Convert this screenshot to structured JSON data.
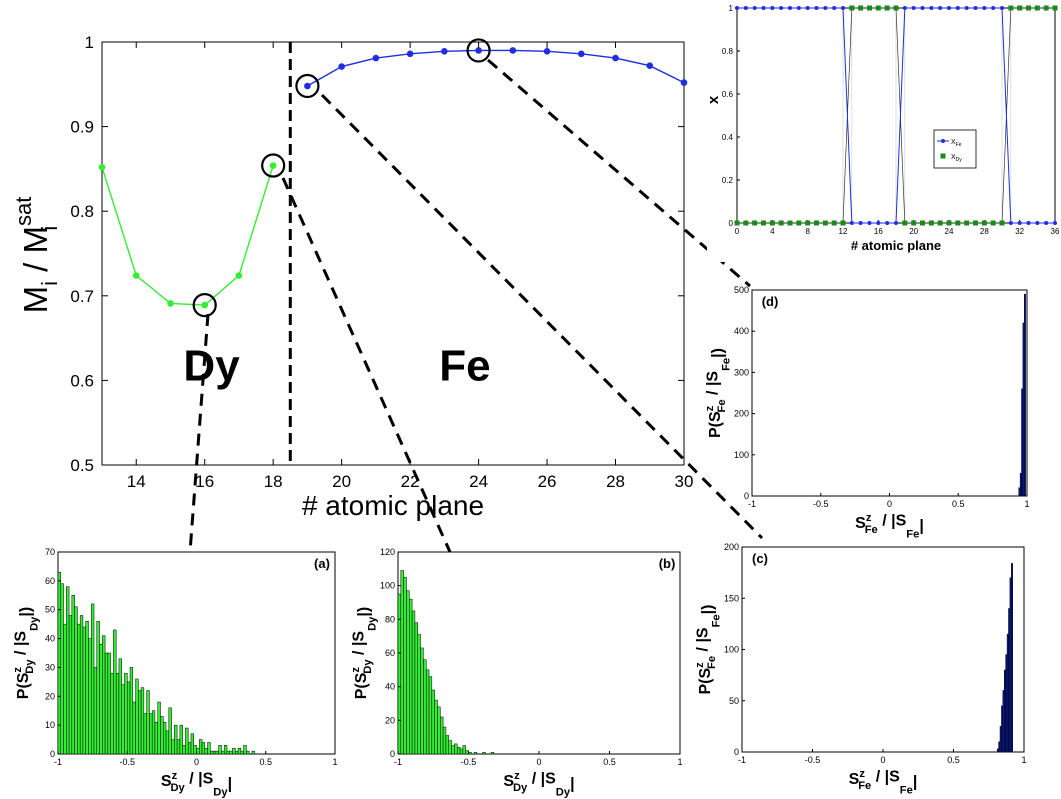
{
  "chart_data": [
    {
      "id": "main",
      "type": "line",
      "xlabel": "# atomic plane",
      "ylabel_main": "M",
      "ylabel_sub": "i",
      "ylabel_sep": " / M",
      "ylabel_sub2": "i",
      "ylabel_sup2": "sat",
      "xlim": [
        13,
        30
      ],
      "ylim": [
        0.5,
        1.0
      ],
      "xticks": [
        14,
        16,
        18,
        20,
        22,
        24,
        26,
        28,
        30
      ],
      "yticks": [
        0.5,
        0.6,
        0.7,
        0.8,
        0.9,
        1.0
      ],
      "xtick_labels": [
        "14",
        "16",
        "18",
        "20",
        "22",
        "24",
        "26",
        "28",
        "30"
      ],
      "ytick_labels": [
        "0.5",
        "0.6",
        "0.7",
        "0.8",
        "0.9",
        "1"
      ],
      "divider_x": 18.5,
      "series": [
        {
          "name": "Dy",
          "color": "#33ee33",
          "x": [
            13,
            14,
            15,
            16,
            17,
            18
          ],
          "y": [
            0.852,
            0.724,
            0.691,
            0.689,
            0.724,
            0.854
          ]
        },
        {
          "name": "Fe",
          "color": "#1f2ee0",
          "x": [
            19,
            20,
            21,
            22,
            23,
            24,
            25,
            26,
            27,
            28,
            29,
            30
          ],
          "y": [
            0.948,
            0.971,
            0.981,
            0.986,
            0.989,
            0.99,
            0.99,
            0.989,
            0.986,
            0.981,
            0.972,
            0.952
          ]
        }
      ],
      "region_labels": [
        {
          "text": "Dy",
          "color": "#33ee33"
        },
        {
          "text": "Fe",
          "color": "#1f2ee0"
        }
      ],
      "highlighted_points": [
        [
          16,
          0.689
        ],
        [
          18,
          0.854
        ],
        [
          19,
          0.948
        ],
        [
          24,
          0.99
        ]
      ]
    },
    {
      "id": "inset",
      "type": "line",
      "xlabel": "# atomic plane",
      "ylabel": "x",
      "xlim": [
        0,
        36
      ],
      "ylim": [
        0,
        1
      ],
      "xticks": [
        0,
        4,
        8,
        12,
        16,
        20,
        24,
        28,
        32,
        36
      ],
      "yticks": [
        0,
        0.2,
        0.4,
        0.6,
        0.8,
        1
      ],
      "xtick_labels": [
        "0",
        "4",
        "8",
        "12",
        "16",
        "20",
        "24",
        "28",
        "32",
        "36"
      ],
      "ytick_labels": [
        "0",
        "0.2",
        "0.4",
        "0.6",
        "0.8",
        "1"
      ],
      "legend_position": "center-right",
      "series": [
        {
          "name": "X",
          "sub": "Fe",
          "color": "#1f2ee0",
          "style": "line-dot",
          "x": [
            0,
            1,
            2,
            3,
            4,
            5,
            6,
            7,
            8,
            9,
            10,
            11,
            12,
            13,
            14,
            15,
            16,
            17,
            18,
            19,
            20,
            21,
            22,
            23,
            24,
            25,
            26,
            27,
            28,
            29,
            30,
            31,
            32,
            33,
            34,
            35,
            36
          ],
          "y": [
            1,
            1,
            1,
            1,
            1,
            1,
            1,
            1,
            1,
            1,
            1,
            1,
            1,
            0,
            0,
            0,
            0,
            0,
            0,
            1,
            1,
            1,
            1,
            1,
            1,
            1,
            1,
            1,
            1,
            1,
            1,
            0,
            0,
            0,
            0,
            0,
            0
          ]
        },
        {
          "name": "X",
          "sub": "Dy",
          "color": "#1a8a1a",
          "style": "square",
          "x": [
            0,
            1,
            2,
            3,
            4,
            5,
            6,
            7,
            8,
            9,
            10,
            11,
            12,
            13,
            14,
            15,
            16,
            17,
            18,
            19,
            20,
            21,
            22,
            23,
            24,
            25,
            26,
            27,
            28,
            29,
            30,
            31,
            32,
            33,
            34,
            35,
            36
          ],
          "y": [
            0,
            0,
            0,
            0,
            0,
            0,
            0,
            0,
            0,
            0,
            0,
            0,
            0,
            1,
            1,
            1,
            1,
            1,
            1,
            0,
            0,
            0,
            0,
            0,
            0,
            0,
            0,
            0,
            0,
            0,
            0,
            1,
            1,
            1,
            1,
            1,
            1
          ]
        }
      ]
    },
    {
      "id": "a",
      "panel_label": "(a)",
      "type": "bar",
      "color": "#33ee33",
      "xlim": [
        -1,
        1
      ],
      "ylim": [
        0,
        70
      ],
      "xticks": [
        -1,
        -0.5,
        0,
        0.5,
        1
      ],
      "xtick_labels": [
        "-1",
        "-0.5",
        "0",
        "0.5",
        "1"
      ],
      "yticks": [
        0,
        10,
        20,
        30,
        40,
        50,
        60,
        70
      ],
      "ytick_labels": [
        "0",
        "10",
        "20",
        "30",
        "40",
        "50",
        "60",
        "70"
      ],
      "xlabel": {
        "main": "S",
        "sup": "z",
        "sub": "Dy",
        "rest": " / |S",
        "sub2": "Dy",
        "end": "|"
      },
      "ylabel": {
        "pre": "P(S",
        "sup": "z",
        "sub": "Dy",
        "rest": " / |S",
        "sub2": "Dy",
        "end": "|)"
      },
      "bin_start": -1.0,
      "bin_width": 0.02,
      "values": [
        63,
        59,
        45,
        58,
        48,
        55,
        51,
        45,
        48,
        44,
        46,
        40,
        52,
        30,
        46,
        38,
        41,
        35,
        35,
        28,
        43,
        28,
        33,
        24,
        28,
        25,
        30,
        18,
        26,
        22,
        23,
        14,
        22,
        14,
        15,
        11,
        18,
        13,
        11,
        8,
        16,
        5,
        10,
        5,
        10,
        3,
        9,
        4,
        7,
        3,
        2,
        5,
        4,
        2,
        4,
        1,
        1,
        1,
        3,
        1,
        3,
        1,
        1,
        2,
        1,
        2,
        1,
        3,
        1,
        0,
        1,
        0,
        0,
        0,
        0
      ]
    },
    {
      "id": "b",
      "panel_label": "(b)",
      "type": "bar",
      "color": "#33ee33",
      "xlim": [
        -1,
        1
      ],
      "ylim": [
        0,
        120
      ],
      "xticks": [
        -1,
        -0.5,
        0,
        0.5,
        1
      ],
      "xtick_labels": [
        "-1",
        "-0.5",
        "0",
        "0.5",
        "1"
      ],
      "yticks": [
        0,
        20,
        40,
        60,
        80,
        100,
        120
      ],
      "ytick_labels": [
        "0",
        "20",
        "40",
        "60",
        "80",
        "100",
        "120"
      ],
      "xlabel": {
        "main": "S",
        "sup": "z",
        "sub": "Dy",
        "rest": " / |S",
        "sub2": "Dy",
        "end": "|"
      },
      "ylabel": {
        "pre": "P(S",
        "sup": "z",
        "sub": "Dy",
        "rest": " / |S",
        "sub2": "Dy",
        "end": "|)"
      },
      "bin_start": -1.0,
      "bin_width": 0.02,
      "values": [
        95,
        109,
        105,
        97,
        92,
        85,
        78,
        71,
        63,
        56,
        50,
        46,
        38,
        32,
        28,
        22,
        16,
        11,
        8,
        5,
        6,
        4,
        3,
        5,
        2,
        1,
        0,
        1,
        0,
        0,
        1,
        0,
        0,
        1
      ]
    },
    {
      "id": "c",
      "panel_label": "(c)",
      "type": "bar",
      "color": "#0a1a9a",
      "xlim": [
        -1,
        1
      ],
      "ylim": [
        0,
        200
      ],
      "xticks": [
        -1,
        -0.5,
        0,
        0.5,
        1
      ],
      "xtick_labels": [
        "-1",
        "-0.5",
        "0",
        "0.5",
        "1"
      ],
      "yticks": [
        0,
        50,
        100,
        150,
        200
      ],
      "ytick_labels": [
        "0",
        "50",
        "100",
        "150",
        "200"
      ],
      "xlabel": {
        "main": "S",
        "sup": "z",
        "sub": "Fe",
        "rest": " / |S",
        "sub2": "Fe",
        "end": "|"
      },
      "ylabel": {
        "pre": "P(S",
        "sup": "z",
        "sub": "Fe",
        "rest": " / |S",
        "sub2": "Fe",
        "end": "|)"
      },
      "bin_start": 0.81,
      "bin_width": 0.01,
      "values": [
        3,
        10,
        25,
        45,
        60,
        80,
        95,
        115,
        140,
        170,
        184,
        0
      ]
    },
    {
      "id": "d",
      "panel_label": "(d)",
      "type": "bar",
      "color": "#0a1a9a",
      "xlim": [
        -1,
        1
      ],
      "ylim": [
        0,
        500
      ],
      "xticks": [
        -1,
        -0.5,
        0,
        0.5,
        1
      ],
      "xtick_labels": [
        "-1",
        "-0.5",
        "0",
        "0.5",
        "1"
      ],
      "yticks": [
        0,
        100,
        200,
        300,
        400,
        500
      ],
      "ytick_labels": [
        "0",
        "100",
        "200",
        "300",
        "400",
        "500"
      ],
      "xlabel": {
        "main": "S",
        "sup": "z",
        "sub": "Fe",
        "rest": " / |S",
        "sub2": "Fe",
        "end": "|"
      },
      "ylabel": {
        "pre": "P(S",
        "sup": "z",
        "sub": "Fe",
        "rest": " / |S",
        "sub2": "Fe",
        "end": "|)"
      },
      "bin_start": 0.94,
      "bin_width": 0.01,
      "values": [
        20,
        55,
        260,
        420,
        490
      ]
    }
  ]
}
